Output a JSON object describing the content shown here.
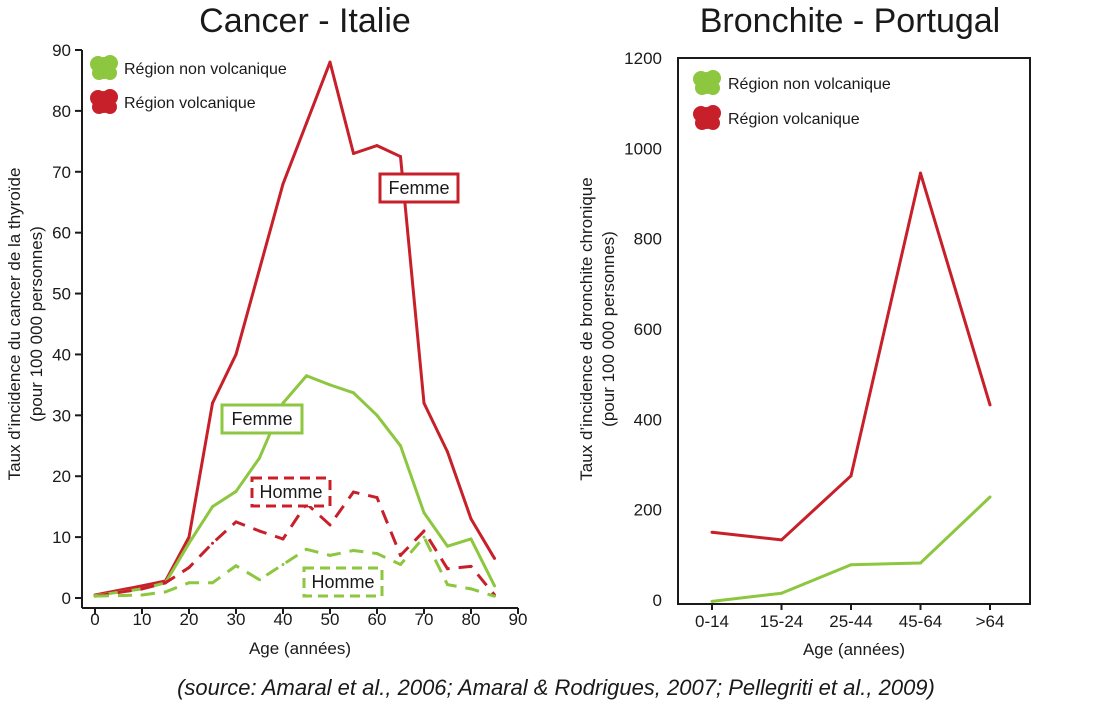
{
  "colors": {
    "red": "#c8202a",
    "green": "#8dc63f"
  },
  "legend": [
    {
      "label": "Région non volcanique",
      "color": "#8dc63f"
    },
    {
      "label": "Région volcanique",
      "color": "#c8202a"
    }
  ],
  "chart_data": [
    {
      "type": "line",
      "title": "Cancer - Italie",
      "xlabel": "Age (années)",
      "ylabel": "Taux d’incidence du cancer de la thyroïde",
      "ylabel2": "(pour 100 000 personnes)",
      "xlim": [
        0,
        90
      ],
      "ylim": [
        0,
        90
      ],
      "xticks": [
        0,
        10,
        20,
        30,
        40,
        50,
        60,
        70,
        80,
        90
      ],
      "yticks": [
        0,
        10,
        20,
        30,
        40,
        50,
        60,
        70,
        80,
        90
      ],
      "grid": false,
      "legend_position": "top-left",
      "series": [
        {
          "group": "Région volcanique",
          "sex": "Femme",
          "style": "solid",
          "color": "#c8202a",
          "x": [
            0,
            10,
            15,
            20,
            25,
            30,
            35,
            40,
            45,
            50,
            55,
            60,
            65,
            70,
            75,
            80,
            85
          ],
          "y": [
            0.5,
            2,
            2.8,
            10,
            32,
            40,
            54,
            68,
            78,
            88,
            73,
            74.3,
            72.5,
            32,
            24,
            13,
            6.5
          ]
        },
        {
          "group": "Région non volcanique",
          "sex": "Femme",
          "style": "solid",
          "color": "#8dc63f",
          "x": [
            0,
            10,
            15,
            20,
            25,
            30,
            35,
            40,
            45,
            50,
            55,
            60,
            65,
            70,
            75,
            80,
            85
          ],
          "y": [
            0.4,
            1.5,
            2.5,
            9,
            15,
            17.5,
            23,
            32,
            36.5,
            35,
            33.7,
            30,
            25,
            14,
            8.5,
            9.7,
            2
          ]
        },
        {
          "group": "Région volcanique",
          "sex": "Homme",
          "style": "dashed",
          "color": "#c8202a",
          "x": [
            0,
            10,
            15,
            20,
            25,
            30,
            35,
            40,
            45,
            50,
            55,
            60,
            65,
            70,
            75,
            80,
            85
          ],
          "y": [
            0.3,
            1.5,
            2.5,
            5,
            9,
            12.5,
            11,
            9.7,
            15.5,
            12,
            17.4,
            16.5,
            7,
            11,
            4.8,
            5.2,
            0.5
          ]
        },
        {
          "group": "Région non volcanique",
          "sex": "Homme",
          "style": "dashed",
          "color": "#8dc63f",
          "x": [
            0,
            10,
            15,
            20,
            25,
            30,
            35,
            40,
            45,
            50,
            55,
            60,
            65,
            70,
            75,
            80,
            85
          ],
          "y": [
            0.3,
            0.5,
            1,
            2.5,
            2.5,
            5.3,
            3,
            5.5,
            8,
            7,
            7.8,
            7.3,
            5.5,
            10,
            2.2,
            1.5,
            0.3
          ]
        }
      ],
      "annotations": [
        {
          "text": "Femme",
          "color": "#c8202a",
          "box": "solid"
        },
        {
          "text": "Femme",
          "color": "#8dc63f",
          "box": "solid"
        },
        {
          "text": "Homme",
          "color": "#c8202a",
          "box": "dashed"
        },
        {
          "text": "Homme",
          "color": "#8dc63f",
          "box": "dashed"
        }
      ]
    },
    {
      "type": "line",
      "title": "Bronchite - Portugal",
      "xlabel": "Age (années)",
      "ylabel": "Taux d’incidence de bronchite chronique",
      "ylabel2": "(pour 100 000 personnes)",
      "categories": [
        "0-14",
        "15-24",
        "25-44",
        "45-64",
        ">64"
      ],
      "ylim": [
        0,
        1200
      ],
      "yticks": [
        0,
        200,
        400,
        600,
        800,
        1000,
        1200
      ],
      "grid": false,
      "legend_position": "top-left",
      "series": [
        {
          "name": "Région volcanique",
          "color": "#c8202a",
          "values": [
            150,
            133,
            275,
            945,
            432
          ]
        },
        {
          "name": "Région non volcanique",
          "color": "#8dc63f",
          "values": [
            -3,
            15,
            78,
            82,
            228
          ]
        }
      ]
    }
  ],
  "source": "(source: Amaral et al., 2006; Amaral & Rodrigues, 2007; Pellegriti et al., 2009)"
}
